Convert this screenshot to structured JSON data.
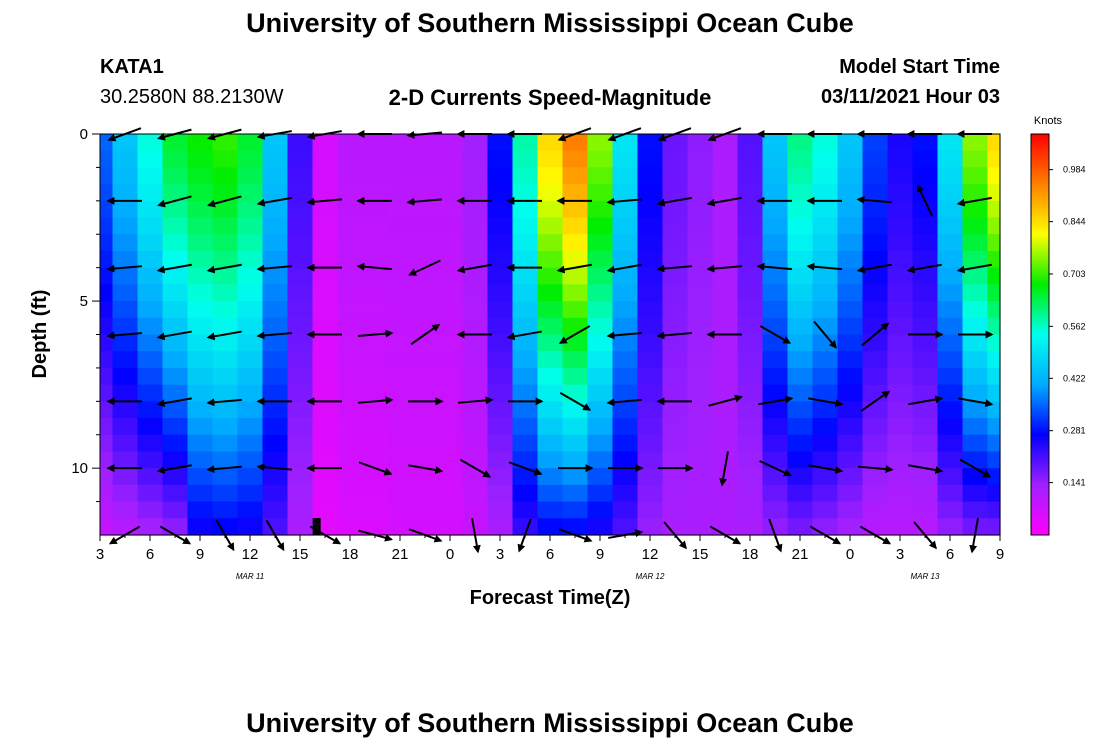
{
  "header": {
    "title": "University of Southern Mississippi Ocean Cube",
    "station_id": "KATA1",
    "station_coords": "30.2580N 88.2130W",
    "subtitle": "2-D Currents Speed-Magnitude",
    "model_label": "Model Start Time",
    "model_time": "03/11/2021 Hour 03"
  },
  "footer": {
    "title": "University of Southern Mississippi Ocean Cube"
  },
  "chart_data": {
    "type": "heatmap",
    "title": "2-D Currents Speed-Magnitude",
    "xlabel": "Forecast Time(Z)",
    "ylabel": "Depth (ft)",
    "x_hours_from_start": [
      0,
      3,
      6,
      9,
      12,
      15,
      18,
      21,
      24,
      27,
      30,
      33,
      36,
      39,
      42,
      45,
      48,
      51,
      54
    ],
    "x_tick_labels": [
      "3",
      "6",
      "9",
      "12",
      "15",
      "18",
      "21",
      "0",
      "3",
      "6",
      "9",
      "12",
      "15",
      "18",
      "21",
      "0",
      "3",
      "6",
      "9"
    ],
    "date_labels": [
      {
        "label": "MAR 11",
        "hour": 9
      },
      {
        "label": "MAR 12",
        "hour": 33
      },
      {
        "label": "MAR 13",
        "hour": 49.5
      }
    ],
    "xlim": [
      0,
      54
    ],
    "ylim": [
      0,
      12
    ],
    "y_ticks": [
      0,
      5,
      10
    ],
    "y_minor_ticks": [
      1,
      2,
      3,
      4,
      6,
      7,
      8,
      9,
      11
    ],
    "y_inverted": true,
    "colorbar": {
      "unit": "Knots",
      "range": [
        0,
        1.08
      ],
      "ticks": [
        0.141,
        0.281,
        0.422,
        0.562,
        0.703,
        0.844,
        0.984
      ],
      "tick_labels": [
        "0.141",
        "0.281",
        "0.422",
        "0.562",
        "0.703",
        "0.844",
        "0.984"
      ],
      "colors": [
        "#ff00ff",
        "#a020ff",
        "#0000ff",
        "#00aaff",
        "#00ffee",
        "#00ee00",
        "#ffff00",
        "#ff8000",
        "#ff0000"
      ]
    },
    "speed_profile": {
      "hours": [
        0,
        1.5,
        3,
        4.5,
        6,
        7.5,
        9,
        10.5,
        12,
        13.5,
        15,
        16.5,
        18,
        19.5,
        21,
        22.5,
        24,
        25.5,
        27,
        28.5,
        30,
        31.5,
        33,
        34.5,
        36,
        37.5,
        39,
        40.5,
        42,
        43.5,
        45,
        46.5,
        48,
        49.5,
        51,
        52.5,
        54
      ],
      "surface_knots": [
        0.35,
        0.45,
        0.55,
        0.65,
        0.68,
        0.7,
        0.65,
        0.45,
        0.22,
        0.06,
        0.1,
        0.1,
        0.1,
        0.1,
        0.1,
        0.13,
        0.28,
        0.58,
        0.85,
        0.95,
        0.75,
        0.5,
        0.28,
        0.18,
        0.15,
        0.12,
        0.2,
        0.45,
        0.6,
        0.55,
        0.45,
        0.32,
        0.25,
        0.28,
        0.5,
        0.75,
        0.85
      ],
      "bottom_knots": [
        0.08,
        0.1,
        0.12,
        0.14,
        0.25,
        0.26,
        0.25,
        0.2,
        0.12,
        0.04,
        0.05,
        0.05,
        0.06,
        0.06,
        0.06,
        0.08,
        0.12,
        0.22,
        0.26,
        0.26,
        0.24,
        0.2,
        0.14,
        0.12,
        0.12,
        0.12,
        0.12,
        0.14,
        0.16,
        0.14,
        0.12,
        0.1,
        0.1,
        0.1,
        0.14,
        0.16,
        0.16
      ]
    },
    "vectors": {
      "depths_ft": [
        0,
        2,
        4,
        6,
        8,
        10,
        12
      ],
      "hours": [
        1.5,
        4.5,
        7.5,
        10.5,
        13.5,
        16.5,
        19.5,
        22.5,
        25.5,
        28.5,
        31.5,
        34.5,
        37.5,
        40.5,
        43.5,
        46.5,
        49.5,
        52.5
      ],
      "angles_deg": [
        [
          200,
          195,
          195,
          190,
          190,
          180,
          185,
          180,
          180,
          200,
          200,
          200,
          200,
          180,
          180,
          180,
          180,
          180
        ],
        [
          180,
          195,
          195,
          190,
          185,
          180,
          185,
          180,
          180,
          180,
          185,
          190,
          190,
          180,
          180,
          175,
          115,
          190
        ],
        [
          185,
          190,
          190,
          185,
          180,
          175,
          205,
          190,
          180,
          190,
          190,
          185,
          185,
          175,
          175,
          190,
          190,
          190
        ],
        [
          185,
          190,
          190,
          185,
          180,
          5,
          35,
          180,
          190,
          210,
          185,
          185,
          180,
          330,
          310,
          40,
          0,
          0
        ],
        [
          180,
          190,
          185,
          180,
          180,
          5,
          0,
          5,
          0,
          330,
          185,
          180,
          15,
          10,
          350,
          35,
          10,
          350
        ],
        [
          180,
          190,
          185,
          175,
          180,
          340,
          350,
          330,
          340,
          360,
          360,
          360,
          260,
          335,
          350,
          355,
          350,
          330
        ],
        [
          210,
          330,
          300,
          300,
          330,
          345,
          340,
          280,
          250,
          340,
          10,
          310,
          330,
          290,
          330,
          330,
          310,
          260
        ]
      ]
    },
    "now_marker_hour": 13
  }
}
